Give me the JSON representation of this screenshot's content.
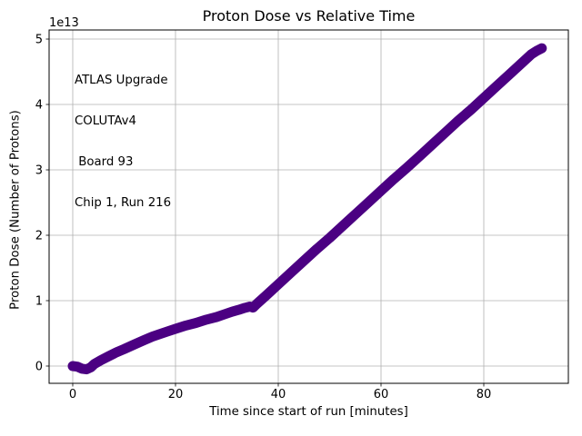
{
  "chart_data": {
    "type": "scatter",
    "title": "Proton Dose vs Relative Time",
    "xlabel": "Time since start of run [minutes]",
    "ylabel": "Proton Dose (Number of Protons)",
    "offset_text": "1e13",
    "annotation_lines": [
      "ATLAS Upgrade",
      "COLUTAv4",
      " Board 93",
      "Chip 1, Run 216"
    ],
    "x_ticks": [
      0,
      20,
      40,
      60,
      80
    ],
    "y_ticks": [
      0,
      1,
      2,
      3,
      4,
      5
    ],
    "xlim": [
      -4.6,
      96.46
    ],
    "ylim": [
      -0.264,
      5.139
    ],
    "grid": true,
    "legend": false,
    "y_scale_note": "y values in units of 1e13 protons",
    "series_color": "#4B0082",
    "grid_color": "#b0b0b0",
    "spine_color": "#000000",
    "points": [
      [
        0,
        0.0
      ],
      [
        0.9,
        -0.01
      ],
      [
        1.8,
        -0.04
      ],
      [
        2.7,
        -0.05
      ],
      [
        3.5,
        -0.02
      ],
      [
        4.2,
        0.03
      ],
      [
        5.5,
        0.09
      ],
      [
        7,
        0.15
      ],
      [
        8.5,
        0.21
      ],
      [
        10,
        0.26
      ],
      [
        12,
        0.33
      ],
      [
        14,
        0.4
      ],
      [
        15.5,
        0.45
      ],
      [
        17,
        0.49
      ],
      [
        18.5,
        0.53
      ],
      [
        20,
        0.57
      ],
      [
        22,
        0.62
      ],
      [
        24,
        0.66
      ],
      [
        26,
        0.71
      ],
      [
        28,
        0.75
      ],
      [
        29.5,
        0.79
      ],
      [
        31,
        0.83
      ],
      [
        32.3,
        0.86
      ],
      [
        33.5,
        0.89
      ],
      [
        34.5,
        0.91
      ],
      [
        35.1,
        0.895
      ],
      [
        35.8,
        0.95
      ],
      [
        37.5,
        1.07
      ],
      [
        40,
        1.25
      ],
      [
        42.5,
        1.43
      ],
      [
        45,
        1.61
      ],
      [
        47.5,
        1.79
      ],
      [
        50,
        1.96
      ],
      [
        52.5,
        2.14
      ],
      [
        55,
        2.32
      ],
      [
        57.5,
        2.5
      ],
      [
        60,
        2.68
      ],
      [
        62.5,
        2.86
      ],
      [
        65,
        3.03
      ],
      [
        67.5,
        3.21
      ],
      [
        70,
        3.39
      ],
      [
        72.5,
        3.57
      ],
      [
        75,
        3.75
      ],
      [
        77.5,
        3.92
      ],
      [
        80,
        4.1
      ],
      [
        82.5,
        4.28
      ],
      [
        85,
        4.46
      ],
      [
        87.2,
        4.62
      ],
      [
        89.3,
        4.77
      ],
      [
        90.3,
        4.82
      ],
      [
        91.3,
        4.86
      ]
    ]
  }
}
